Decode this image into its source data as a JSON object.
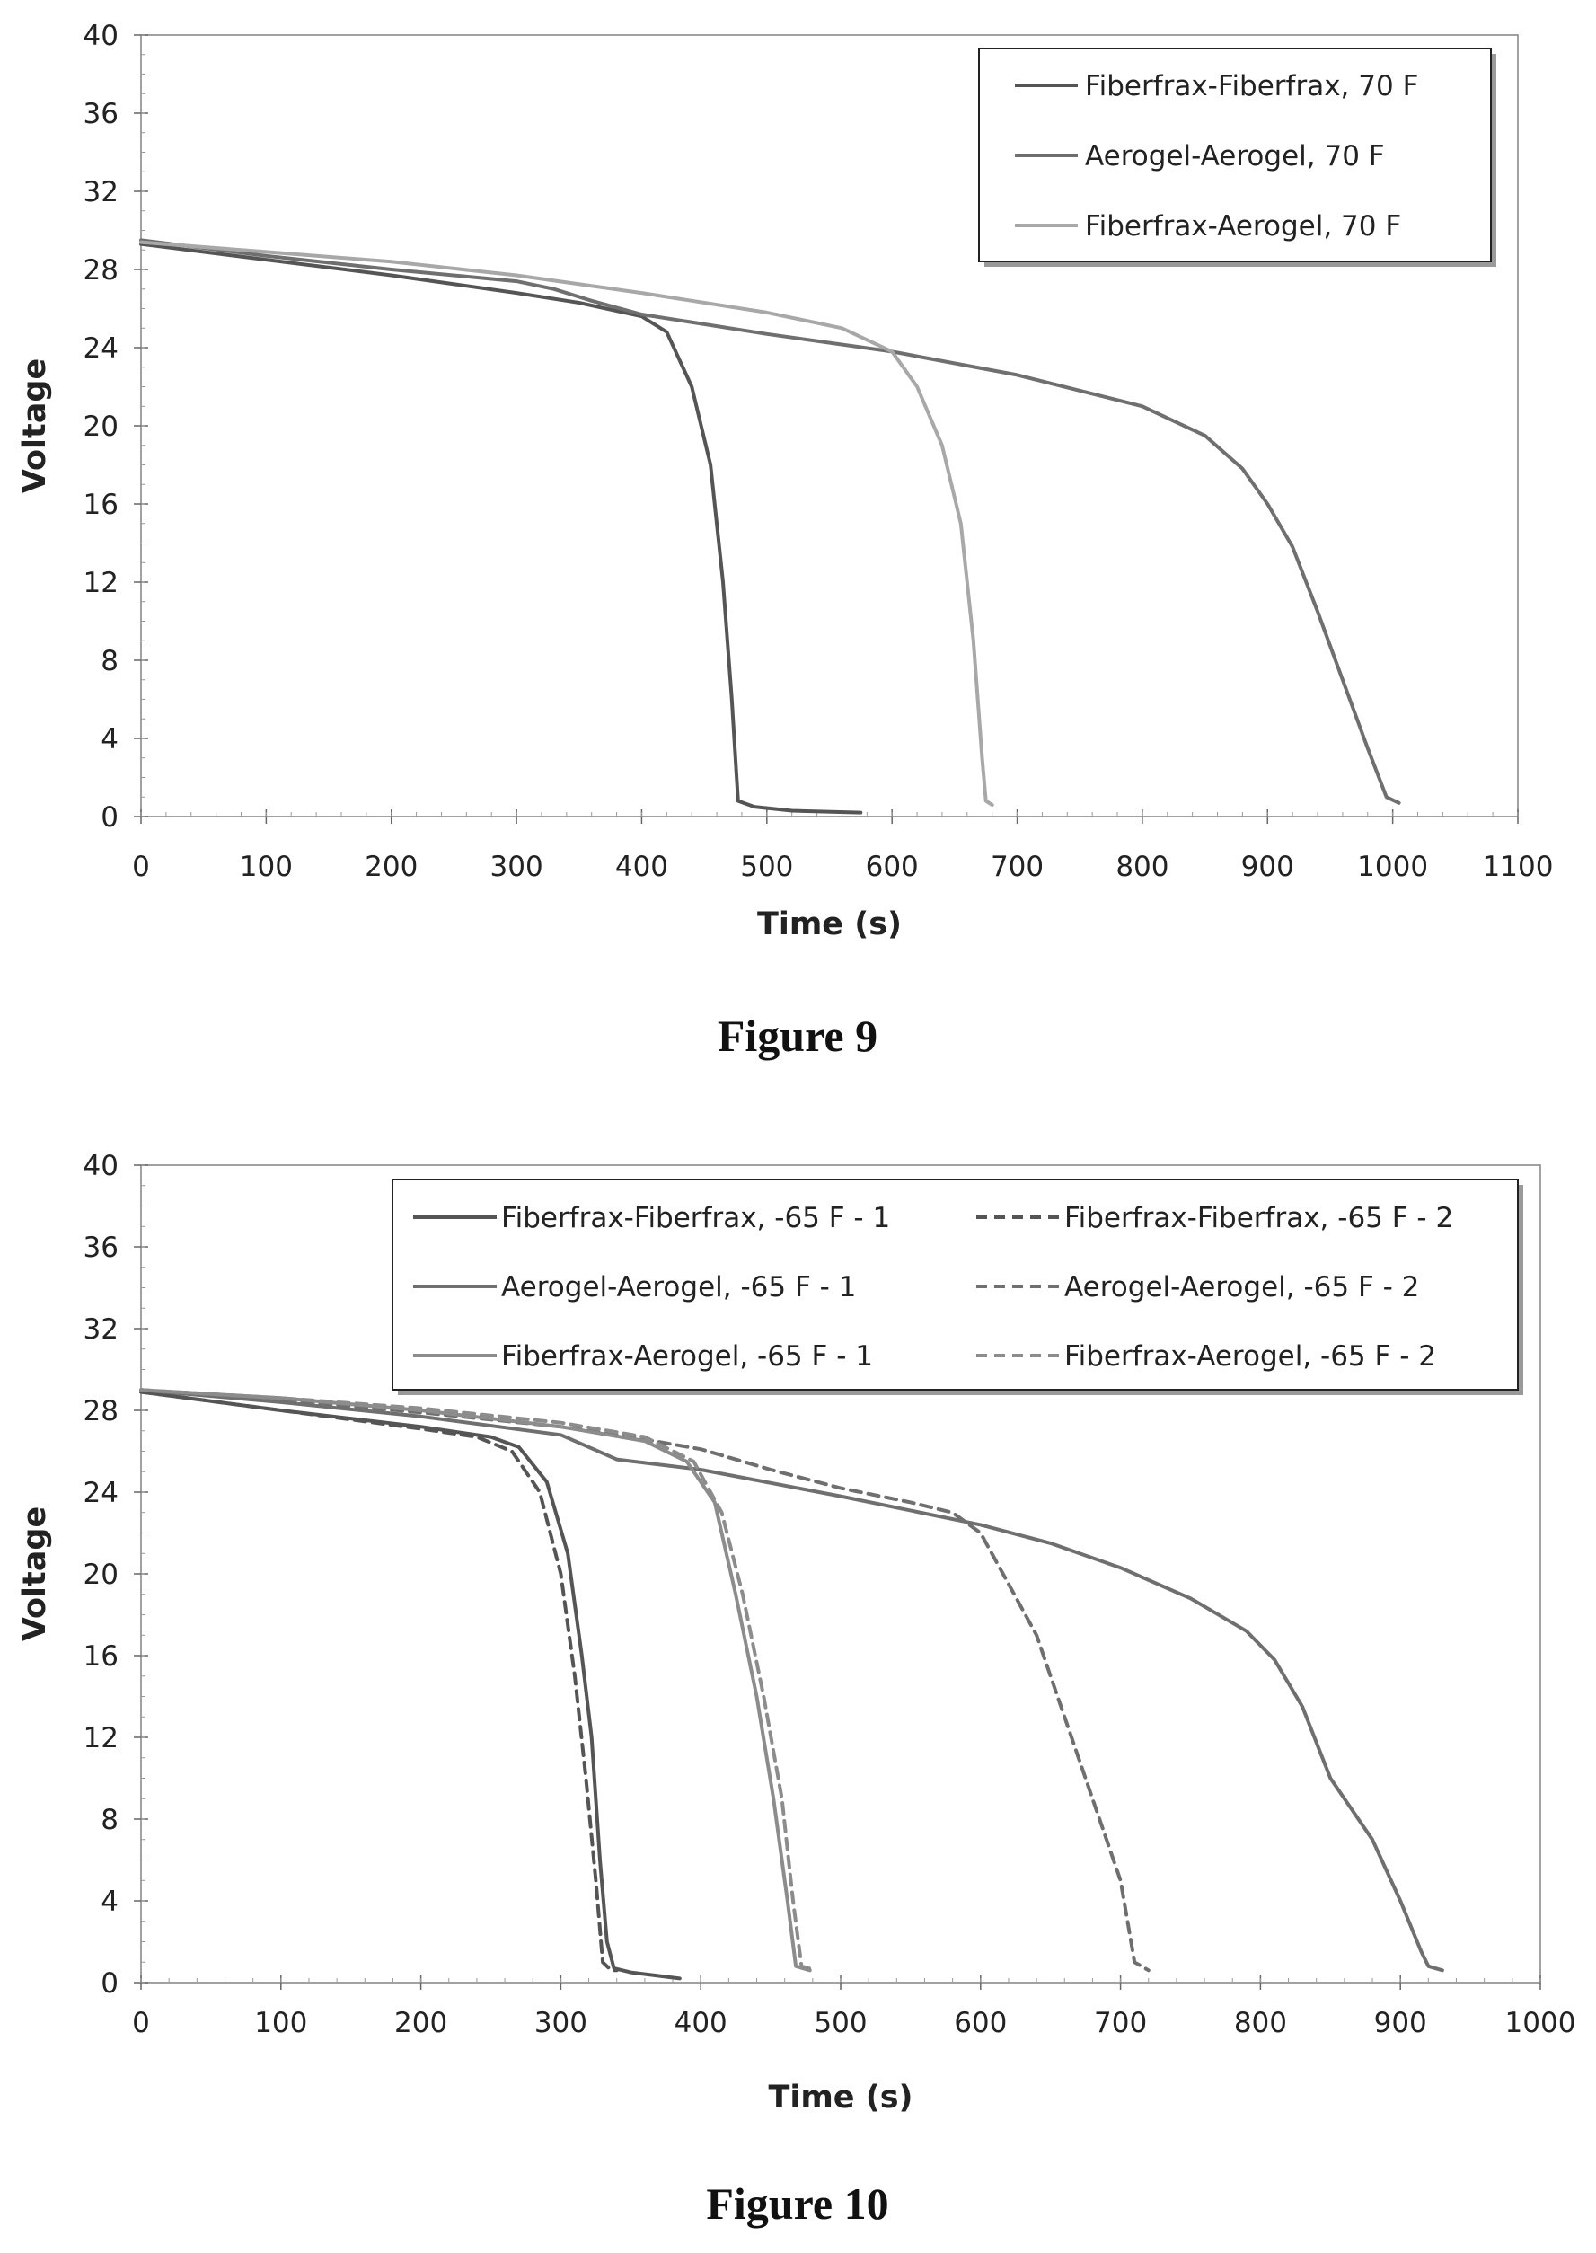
{
  "chart_data": [
    {
      "type": "line",
      "caption": "Figure 9",
      "xlabel": "Time (s)",
      "ylabel": "Voltage",
      "xlim": [
        0,
        1100
      ],
      "ylim": [
        0,
        40
      ],
      "xticks": [
        "0",
        "100",
        "200",
        "300",
        "400",
        "500",
        "600",
        "700",
        "800",
        "900",
        "1000",
        "1100"
      ],
      "yticks": [
        "0",
        "4",
        "8",
        "12",
        "16",
        "20",
        "24",
        "28",
        "32",
        "36",
        "40"
      ],
      "grid": false,
      "legend_position": "top-right",
      "series": [
        {
          "name": "Fiberfrax-Fiberfrax, 70 F",
          "color": "#555555",
          "dash": false,
          "points": [
            [
              0,
              29.3
            ],
            [
              100,
              28.5
            ],
            [
              200,
              27.7
            ],
            [
              300,
              26.8
            ],
            [
              350,
              26.3
            ],
            [
              400,
              25.6
            ],
            [
              420,
              24.8
            ],
            [
              440,
              22.0
            ],
            [
              455,
              18.0
            ],
            [
              465,
              12.0
            ],
            [
              472,
              6.0
            ],
            [
              477,
              0.8
            ],
            [
              490,
              0.5
            ],
            [
              520,
              0.3
            ],
            [
              575,
              0.2
            ]
          ]
        },
        {
          "name": "Aerogel-Aerogel, 70 F",
          "color": "#6f6f6f",
          "dash": false,
          "points": [
            [
              0,
              29.5
            ],
            [
              100,
              28.7
            ],
            [
              200,
              28.0
            ],
            [
              300,
              27.4
            ],
            [
              330,
              27.0
            ],
            [
              360,
              26.4
            ],
            [
              400,
              25.7
            ],
            [
              500,
              24.7
            ],
            [
              600,
              23.8
            ],
            [
              700,
              22.6
            ],
            [
              800,
              21.0
            ],
            [
              850,
              19.5
            ],
            [
              880,
              17.8
            ],
            [
              900,
              16.0
            ],
            [
              920,
              13.8
            ],
            [
              940,
              10.5
            ],
            [
              960,
              7.0
            ],
            [
              980,
              3.5
            ],
            [
              995,
              1.0
            ],
            [
              1005,
              0.7
            ]
          ]
        },
        {
          "name": "Fiberfrax-Aerogel, 70 F",
          "color": "#a8a8a8",
          "dash": false,
          "points": [
            [
              0,
              29.4
            ],
            [
              100,
              28.9
            ],
            [
              200,
              28.4
            ],
            [
              300,
              27.7
            ],
            [
              400,
              26.8
            ],
            [
              500,
              25.8
            ],
            [
              560,
              25.0
            ],
            [
              600,
              23.8
            ],
            [
              620,
              22.0
            ],
            [
              640,
              19.0
            ],
            [
              655,
              15.0
            ],
            [
              665,
              9.0
            ],
            [
              672,
              3.0
            ],
            [
              675,
              0.8
            ],
            [
              680,
              0.6
            ]
          ]
        }
      ]
    },
    {
      "type": "line",
      "caption": "Figure 10",
      "xlabel": "Time (s)",
      "ylabel": "Voltage",
      "xlim": [
        0,
        1000
      ],
      "ylim": [
        0,
        40
      ],
      "xticks": [
        "0",
        "100",
        "200",
        "300",
        "400",
        "500",
        "600",
        "700",
        "800",
        "900",
        "1000"
      ],
      "yticks": [
        "0",
        "4",
        "8",
        "12",
        "16",
        "20",
        "24",
        "28",
        "32",
        "36",
        "40"
      ],
      "grid": false,
      "legend_position": "top-right",
      "legend_columns": 2,
      "series": [
        {
          "name": "Fiberfrax-Fiberfrax, -65 F - 1",
          "color": "#555555",
          "dash": false,
          "points": [
            [
              0,
              28.9
            ],
            [
              100,
              28.0
            ],
            [
              200,
              27.2
            ],
            [
              250,
              26.7
            ],
            [
              270,
              26.2
            ],
            [
              290,
              24.5
            ],
            [
              305,
              21.0
            ],
            [
              315,
              16.0
            ],
            [
              322,
              12.0
            ],
            [
              328,
              6.0
            ],
            [
              333,
              2.0
            ],
            [
              338,
              0.7
            ],
            [
              350,
              0.5
            ],
            [
              385,
              0.2
            ]
          ]
        },
        {
          "name": "Fiberfrax-Fiberfrax, -65 F - 2",
          "color": "#555555",
          "dash": true,
          "points": [
            [
              0,
              28.9
            ],
            [
              100,
              28.0
            ],
            [
              200,
              27.1
            ],
            [
              240,
              26.7
            ],
            [
              265,
              26.0
            ],
            [
              285,
              24.0
            ],
            [
              300,
              20.0
            ],
            [
              310,
              15.0
            ],
            [
              318,
              10.0
            ],
            [
              325,
              5.0
            ],
            [
              330,
              1.0
            ],
            [
              336,
              0.6
            ],
            [
              340,
              0.6
            ]
          ]
        },
        {
          "name": "Aerogel-Aerogel, -65 F - 1",
          "color": "#6f6f6f",
          "dash": false,
          "points": [
            [
              0,
              29.0
            ],
            [
              100,
              28.4
            ],
            [
              200,
              27.7
            ],
            [
              300,
              26.8
            ],
            [
              320,
              26.2
            ],
            [
              340,
              25.6
            ],
            [
              400,
              25.1
            ],
            [
              500,
              23.8
            ],
            [
              600,
              22.4
            ],
            [
              650,
              21.5
            ],
            [
              700,
              20.3
            ],
            [
              750,
              18.8
            ],
            [
              790,
              17.2
            ],
            [
              810,
              15.8
            ],
            [
              830,
              13.5
            ],
            [
              850,
              10.0
            ],
            [
              880,
              7.0
            ],
            [
              900,
              4.0
            ],
            [
              915,
              1.5
            ],
            [
              920,
              0.8
            ],
            [
              930,
              0.6
            ]
          ]
        },
        {
          "name": "Aerogel-Aerogel, -65 F - 2",
          "color": "#6f6f6f",
          "dash": true,
          "points": [
            [
              0,
              29.0
            ],
            [
              100,
              28.5
            ],
            [
              200,
              27.9
            ],
            [
              300,
              27.2
            ],
            [
              350,
              26.7
            ],
            [
              400,
              26.1
            ],
            [
              450,
              25.1
            ],
            [
              500,
              24.2
            ],
            [
              550,
              23.5
            ],
            [
              580,
              23.0
            ],
            [
              600,
              22.0
            ],
            [
              620,
              19.5
            ],
            [
              640,
              17.0
            ],
            [
              660,
              13.0
            ],
            [
              680,
              9.0
            ],
            [
              700,
              5.0
            ],
            [
              710,
              1.0
            ],
            [
              720,
              0.6
            ]
          ]
        },
        {
          "name": "Fiberfrax-Aerogel, -65 F - 1",
          "color": "#8c8c8c",
          "dash": false,
          "points": [
            [
              0,
              29.0
            ],
            [
              100,
              28.6
            ],
            [
              200,
              28.0
            ],
            [
              300,
              27.2
            ],
            [
              360,
              26.5
            ],
            [
              390,
              25.5
            ],
            [
              410,
              23.5
            ],
            [
              425,
              19.0
            ],
            [
              440,
              14.0
            ],
            [
              452,
              9.0
            ],
            [
              462,
              4.0
            ],
            [
              468,
              0.8
            ],
            [
              478,
              0.6
            ]
          ]
        },
        {
          "name": "Fiberfrax-Aerogel, -65 F - 2",
          "color": "#8c8c8c",
          "dash": true,
          "points": [
            [
              0,
              29.0
            ],
            [
              100,
              28.6
            ],
            [
              200,
              28.1
            ],
            [
              300,
              27.4
            ],
            [
              360,
              26.7
            ],
            [
              395,
              25.5
            ],
            [
              415,
              23.0
            ],
            [
              430,
              19.0
            ],
            [
              445,
              14.0
            ],
            [
              458,
              9.0
            ],
            [
              466,
              4.0
            ],
            [
              472,
              0.8
            ],
            [
              482,
              0.6
            ]
          ]
        }
      ]
    }
  ]
}
